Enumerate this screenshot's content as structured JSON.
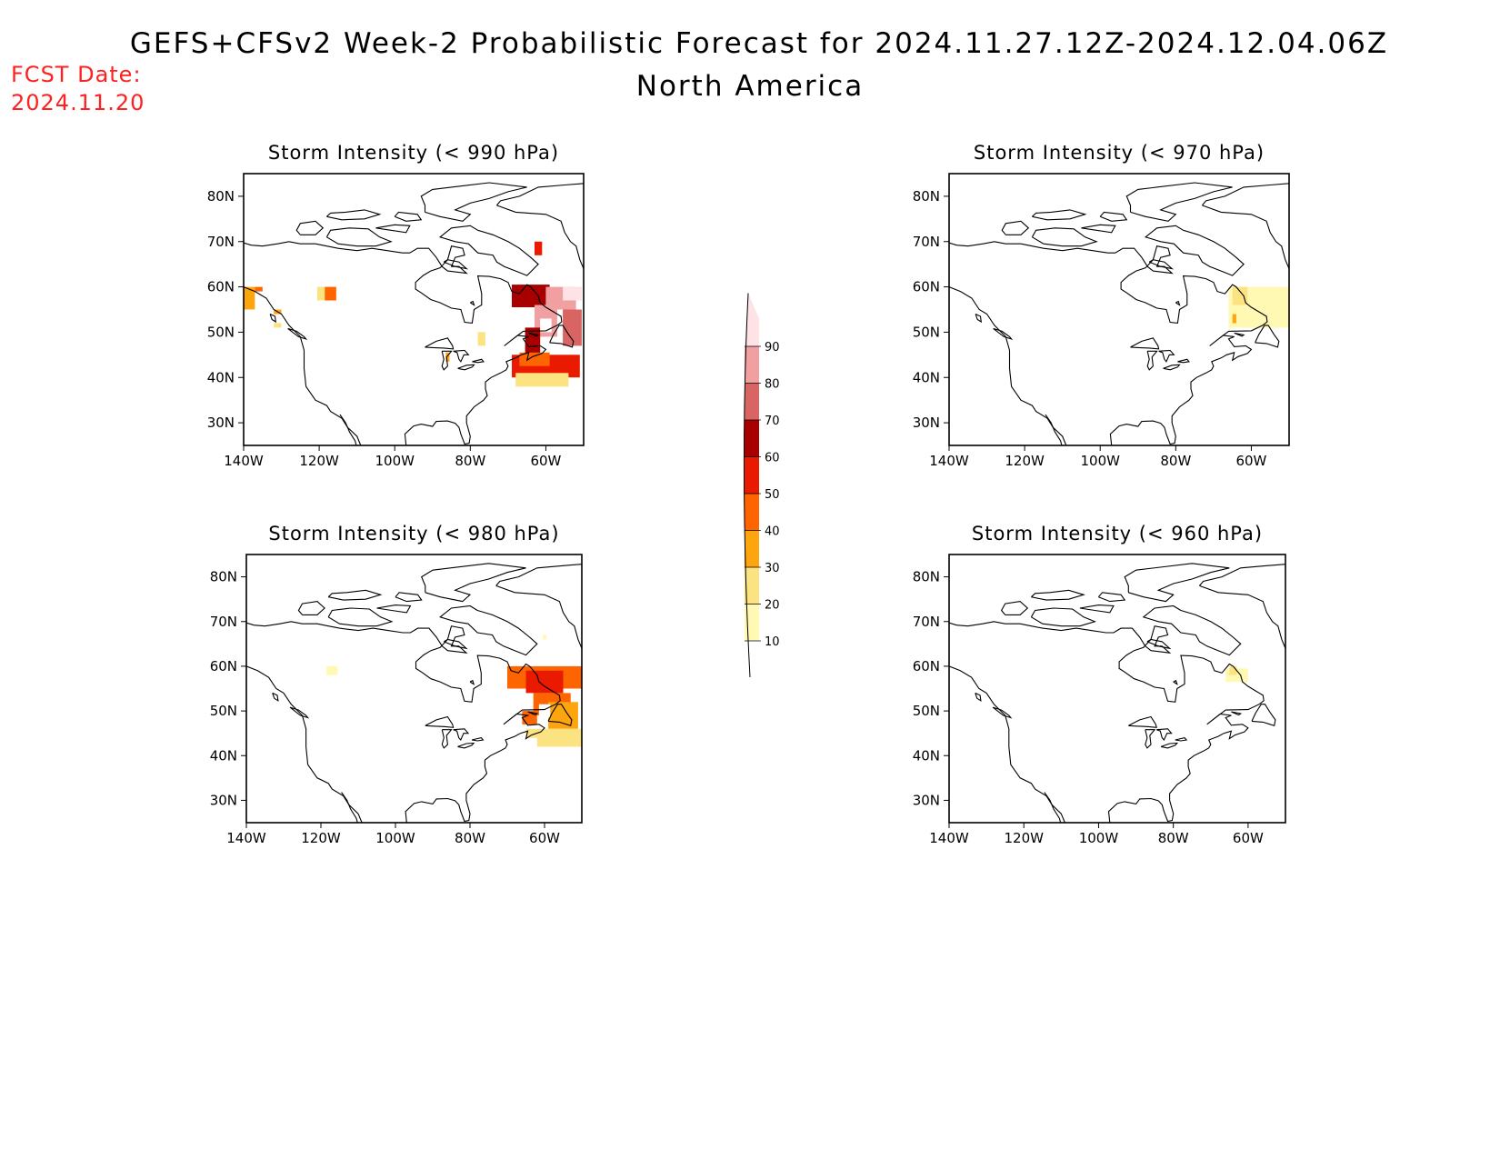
{
  "header": {
    "title": "GEFS+CFSv2 Week-2 Probabilistic Forecast for 2024.11.27.12Z-2024.12.04.06Z",
    "subtitle": "North America",
    "fcst_label": "FCST Date:",
    "fcst_date": "2024.11.20"
  },
  "panels": [
    {
      "title": "Storm Intensity (< 990 hPa)",
      "threshold": "990",
      "cells": [
        {
          "lon": -139,
          "lat": 57.5,
          "p": 30,
          "w": 4,
          "h": 5
        },
        {
          "lon": -136,
          "lat": 59.5,
          "p": 40,
          "w": 2,
          "h": 1
        },
        {
          "lon": -131,
          "lat": 54.5,
          "p": 30,
          "w": 2,
          "h": 1
        },
        {
          "lon": -131,
          "lat": 51.5,
          "p": 20,
          "w": 2,
          "h": 1
        },
        {
          "lon": -118,
          "lat": 58.5,
          "p": 20,
          "w": 5,
          "h": 3
        },
        {
          "lon": -117,
          "lat": 58.5,
          "p": 40,
          "w": 3,
          "h": 3
        },
        {
          "lon": -77,
          "lat": 48.5,
          "p": 20,
          "w": 2,
          "h": 3
        },
        {
          "lon": -86,
          "lat": 44.5,
          "p": 30,
          "w": 1,
          "h": 2
        },
        {
          "lon": -62,
          "lat": 68.5,
          "p": 50,
          "w": 2,
          "h": 3
        },
        {
          "lon": -64,
          "lat": 58,
          "p": 60,
          "w": 10,
          "h": 5
        },
        {
          "lon": -56,
          "lat": 57.5,
          "p": 80,
          "w": 8,
          "h": 5
        },
        {
          "lon": -53,
          "lat": 58.5,
          "p": 90,
          "w": 5,
          "h": 3
        },
        {
          "lon": -60,
          "lat": 52.5,
          "p": 80,
          "w": 6,
          "h": 7
        },
        {
          "lon": -53,
          "lat": 51,
          "p": 70,
          "w": 5,
          "h": 8
        },
        {
          "lon": -63.5,
          "lat": 48,
          "p": 60,
          "w": 4,
          "h": 6
        },
        {
          "lon": -60,
          "lat": 42.5,
          "p": 50,
          "w": 18,
          "h": 5
        },
        {
          "lon": -63,
          "lat": 44,
          "p": 40,
          "w": 8,
          "h": 3
        },
        {
          "lon": -61,
          "lat": 39.5,
          "p": 20,
          "w": 14,
          "h": 3
        },
        {
          "lon": -60,
          "lat": 51.5,
          "p": 0,
          "w": 3,
          "h": 3
        }
      ]
    },
    {
      "title": "Storm Intensity (< 970 hPa)",
      "threshold": "970",
      "cells": [
        {
          "lon": -57.5,
          "lat": 55.5,
          "p": 10,
          "w": 17,
          "h": 9
        },
        {
          "lon": -63,
          "lat": 58,
          "p": 20,
          "w": 4,
          "h": 4
        },
        {
          "lon": -64.5,
          "lat": 53,
          "p": 30,
          "w": 1,
          "h": 2
        }
      ]
    },
    {
      "title": "Storm Intensity (< 980 hPa)",
      "threshold": "980",
      "cells": [
        {
          "lon": -117,
          "lat": 59,
          "p": 10,
          "w": 3,
          "h": 2
        },
        {
          "lon": -60,
          "lat": 66.5,
          "p": 10,
          "w": 1,
          "h": 1
        },
        {
          "lon": -60,
          "lat": 57.5,
          "p": 40,
          "w": 20,
          "h": 5
        },
        {
          "lon": -60,
          "lat": 56.5,
          "p": 50,
          "w": 10,
          "h": 5
        },
        {
          "lon": -58,
          "lat": 51.5,
          "p": 40,
          "w": 10,
          "h": 5
        },
        {
          "lon": -55,
          "lat": 49,
          "p": 30,
          "w": 8,
          "h": 6
        },
        {
          "lon": -64,
          "lat": 48.5,
          "p": 40,
          "w": 4,
          "h": 3
        },
        {
          "lon": -56,
          "lat": 44,
          "p": 20,
          "w": 12,
          "h": 4
        },
        {
          "lon": -63,
          "lat": 45,
          "p": 20,
          "w": 4,
          "h": 2
        },
        {
          "lon": -60,
          "lat": 50,
          "p": 0,
          "w": 3,
          "h": 3
        }
      ]
    },
    {
      "title": "Storm Intensity (< 960 hPa)",
      "threshold": "960",
      "cells": [
        {
          "lon": -63,
          "lat": 58,
          "p": 10,
          "w": 6,
          "h": 3
        },
        {
          "lon": -64,
          "lat": 59,
          "p": 20,
          "w": 2,
          "h": 2
        }
      ]
    }
  ],
  "axes": {
    "x_ticks": [
      "140W",
      "120W",
      "100W",
      "80W",
      "60W"
    ],
    "y_ticks": [
      "30N",
      "40N",
      "50N",
      "60N",
      "70N",
      "80N"
    ],
    "lon_range": [
      -140,
      -50
    ],
    "lat_range": [
      25,
      85
    ]
  },
  "colorbar": {
    "levels": [
      "10",
      "20",
      "30",
      "40",
      "50",
      "60",
      "70",
      "80",
      "90"
    ],
    "colors": [
      "#fff9b4",
      "#fce382",
      "#fda50f",
      "#fe6400",
      "#e91a00",
      "#a80000",
      "#d86464",
      "#f0a0a0",
      "#fde2e6"
    ]
  }
}
